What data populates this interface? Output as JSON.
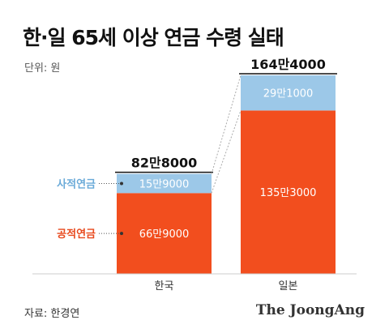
{
  "title": "한·일 65세 이상 연금 수령 실태",
  "unit_label": "단위: 원",
  "source": "자료: 한경연",
  "brand": "The JoongAng",
  "colors": {
    "private": "#9cc8e8",
    "public": "#f24e1e",
    "private_label": "#6aaad8",
    "public_label": "#e8491d"
  },
  "chart_data": {
    "type": "bar",
    "stacked": true,
    "categories": [
      "한국",
      "일본"
    ],
    "series": [
      {
        "name": "공적연금",
        "values": [
          669000,
          1353000
        ],
        "labels": [
          "66만9000",
          "135만3000"
        ]
      },
      {
        "name": "사적연금",
        "values": [
          159000,
          291000
        ],
        "labels": [
          "15만9000",
          "29만1000"
        ]
      }
    ],
    "totals": [
      828000,
      1644000
    ],
    "total_labels": [
      "82만8000",
      "164만4000"
    ],
    "ylim": [
      0,
      1644000
    ],
    "grid": false,
    "legend_position": "left"
  }
}
